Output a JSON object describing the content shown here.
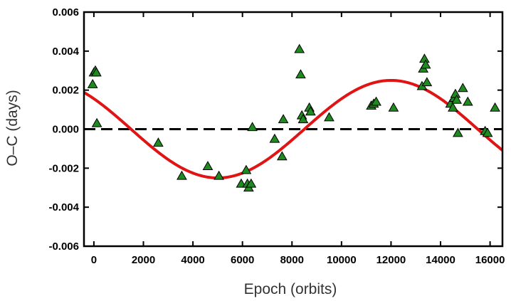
{
  "chart_data": {
    "type": "scatter",
    "xlabel": "Epoch (orbits)",
    "ylabel": "O–C (days)",
    "xlim": [
      -400,
      16500
    ],
    "ylim": [
      -0.006,
      0.006
    ],
    "x_ticks": [
      0,
      2000,
      4000,
      6000,
      8000,
      10000,
      12000,
      14000,
      16000
    ],
    "x_tick_labels": [
      "0",
      "2000",
      "4000",
      "6000",
      "8000",
      "10000",
      "12000",
      "14000",
      "16000"
    ],
    "y_ticks": [
      -0.006,
      -0.004,
      -0.002,
      0.0,
      0.002,
      0.004,
      0.006
    ],
    "y_tick_labels": [
      "-0.006",
      "-0.004",
      "-0.002",
      "0.000",
      "0.002",
      "0.004",
      "0.006"
    ],
    "grid": false,
    "legend": "none",
    "colors": {
      "marker_fill": "#1f8a1f",
      "marker_edge": "#000000",
      "fit_line": "#e01414",
      "zero_line": "#000000"
    },
    "series": [
      {
        "marker": "triangle",
        "x": [
          -50,
          0,
          60,
          100,
          120,
          2600,
          3550,
          4600,
          5050,
          5950,
          6150,
          6200,
          6250,
          6350,
          6400,
          7300,
          7600,
          7650,
          8300,
          8350,
          8400,
          8450,
          8700,
          8750,
          9500,
          11200,
          11300,
          11400,
          12100,
          13250,
          13300,
          13350,
          13400,
          13450,
          14400,
          14500,
          14550,
          14600,
          14650,
          14700,
          14900,
          15100,
          15800,
          15900,
          16200
        ],
        "y": [
          0.0023,
          0.0029,
          0.003,
          0.0029,
          0.0003,
          -0.0007,
          -0.0024,
          -0.0019,
          -0.0024,
          -0.0028,
          -0.0021,
          -0.0028,
          -0.003,
          -0.0028,
          0.0001,
          -0.0005,
          -0.0014,
          0.0005,
          0.0041,
          0.0028,
          0.0007,
          0.0005,
          0.0011,
          0.0009,
          0.0006,
          0.0012,
          0.0013,
          0.0014,
          0.0011,
          0.0022,
          0.0031,
          0.0036,
          0.0033,
          0.0024,
          0.0013,
          0.0011,
          0.0016,
          0.0018,
          0.0015,
          -0.0002,
          0.0021,
          0.0014,
          -0.0001,
          -0.0002,
          0.0011
        ]
      }
    ],
    "fit": {
      "type": "sinusoid",
      "amplitude": 0.0025,
      "period": 14000,
      "phase_epoch": 1500,
      "offset": 0.0
    },
    "reference_line": {
      "y": 0.0,
      "style": "dashed"
    }
  }
}
